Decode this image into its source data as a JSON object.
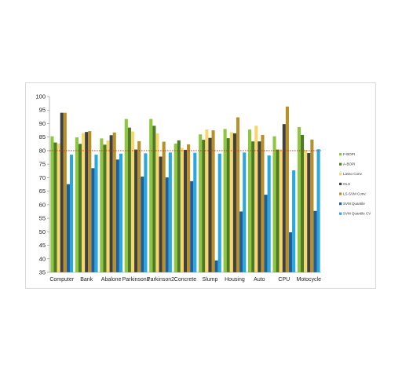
{
  "chart_data": {
    "type": "bar",
    "categories": [
      "Computer",
      "Bank",
      "Abalone",
      "Parkinson1",
      "Parkinson2",
      "Concrete",
      "Slump",
      "Housing",
      "Auto",
      "CPU",
      "Motocycle"
    ],
    "series": [
      {
        "name": "F-BOPI",
        "color": "#8dc63f",
        "values": [
          85.3,
          84.9,
          84.5,
          91.7,
          91.7,
          82.6,
          86.0,
          88.0,
          87.8,
          85.3,
          88.7
        ]
      },
      {
        "name": "A-BOPI",
        "color": "#4e7a27",
        "values": [
          83.0,
          82.5,
          82.2,
          88.5,
          89.2,
          83.8,
          84.0,
          84.6,
          83.4,
          80.4,
          85.8
        ]
      },
      {
        "name": "Lasso Conv.",
        "color": "#f5d76e",
        "values": [
          82.6,
          86.5,
          83.7,
          87.1,
          86.4,
          81.0,
          87.8,
          86.8,
          89.2,
          80.4,
          80.2
        ]
      },
      {
        "name": "OLS",
        "color": "#404040",
        "values": [
          94.0,
          86.9,
          85.7,
          80.4,
          77.8,
          80.3,
          84.7,
          86.4,
          83.4,
          89.8,
          79.1
        ]
      },
      {
        "name": "LS-SVM Conv.",
        "color": "#b8902a",
        "values": [
          94.0,
          87.2,
          86.7,
          83.5,
          83.3,
          82.3,
          87.5,
          92.3,
          85.8,
          96.3,
          84.1
        ]
      },
      {
        "name": "SVM Quantile",
        "color": "#1f5f99",
        "values": [
          67.6,
          73.5,
          76.7,
          70.4,
          70.1,
          68.7,
          39.4,
          57.5,
          63.7,
          49.8,
          57.7
        ]
      },
      {
        "name": "SVM Quantile CV",
        "color": "#29a8e0",
        "values": [
          78.5,
          78.5,
          78.9,
          79.0,
          79.3,
          79.2,
          78.9,
          79.3,
          78.2,
          72.7,
          80.5
        ]
      }
    ],
    "reference_line": {
      "value": 80,
      "color": "#e02020",
      "style": "dotted"
    },
    "ylim": [
      35,
      100
    ],
    "yticks": [
      35,
      40,
      45,
      50,
      55,
      60,
      65,
      70,
      75,
      80,
      85,
      90,
      95,
      100
    ],
    "title": "",
    "xlabel": "",
    "ylabel": "",
    "grid": false,
    "legend": "right"
  }
}
